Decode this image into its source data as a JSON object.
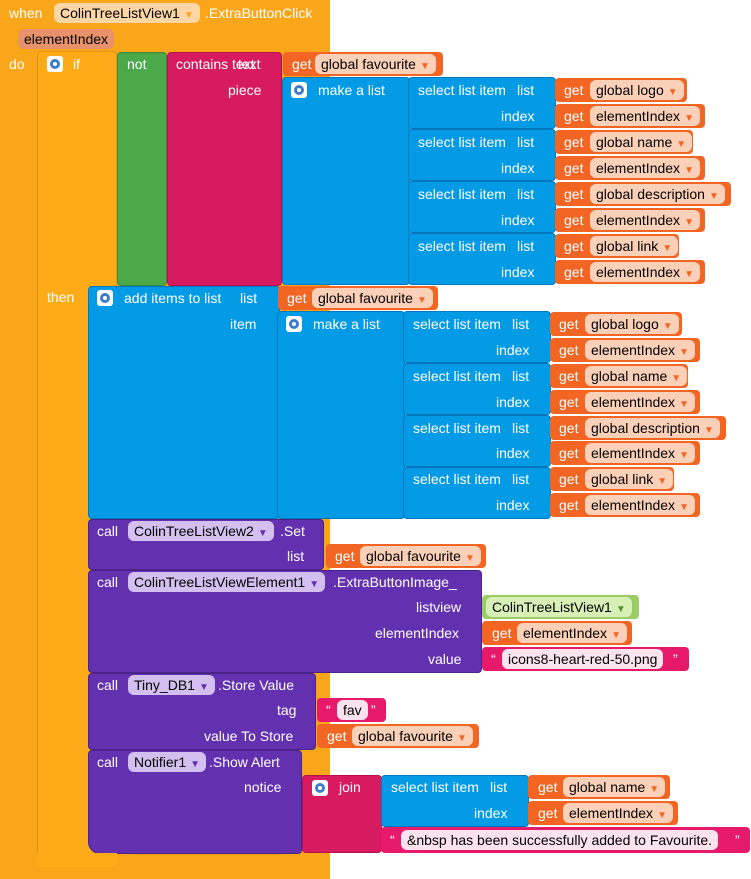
{
  "event": {
    "when": "when",
    "component": "ColinTreeListView1",
    "event_name": ".ExtraButtonClick",
    "param": "elementIndex",
    "do": "do"
  },
  "ifblock": {
    "if": "if",
    "then": "then"
  },
  "cond": {
    "not": "not",
    "contains_text": "contains text",
    "text_label": "text",
    "piece_label": "piece"
  },
  "common": {
    "get": "get",
    "make_a_list": "make a list",
    "select_list_item": "select list item",
    "list": "list",
    "index": "index",
    "call": "call"
  },
  "vars": {
    "favourite": "global favourite",
    "logo": "global logo",
    "name": "global name",
    "description": "global description",
    "link": "global link",
    "elementIndex": "elementIndex"
  },
  "add_items": {
    "label": "add items to list",
    "list": "list",
    "item": "item"
  },
  "set_call": {
    "component": "ColinTreeListView2",
    "method": ".Set",
    "list_label": "list"
  },
  "image_call": {
    "component": "ColinTreeListViewElement1",
    "method": ".ExtraButtonImage_",
    "listview_label": "listview",
    "listview_value": "ColinTreeListView1",
    "element_label": "elementIndex",
    "value_label": "value",
    "value": "icons8-heart-red-50.png"
  },
  "db_call": {
    "component": "Tiny_DB1",
    "method": ".Store Value",
    "tag_label": "tag",
    "tag_value": "fav",
    "value_label": "value To Store"
  },
  "alert_call": {
    "component": "Notifier1",
    "method": ".Show Alert",
    "notice_label": "notice",
    "join": "join",
    "suffix": "&nbsp has been successfully added to Favourite."
  },
  "colors": {
    "event": "#f9a61a",
    "control": "#ffab19",
    "logic": "#4ba949",
    "text": "#d81b60",
    "lists": "#039be5",
    "variables": "#f26522",
    "component": "#6330b0"
  }
}
